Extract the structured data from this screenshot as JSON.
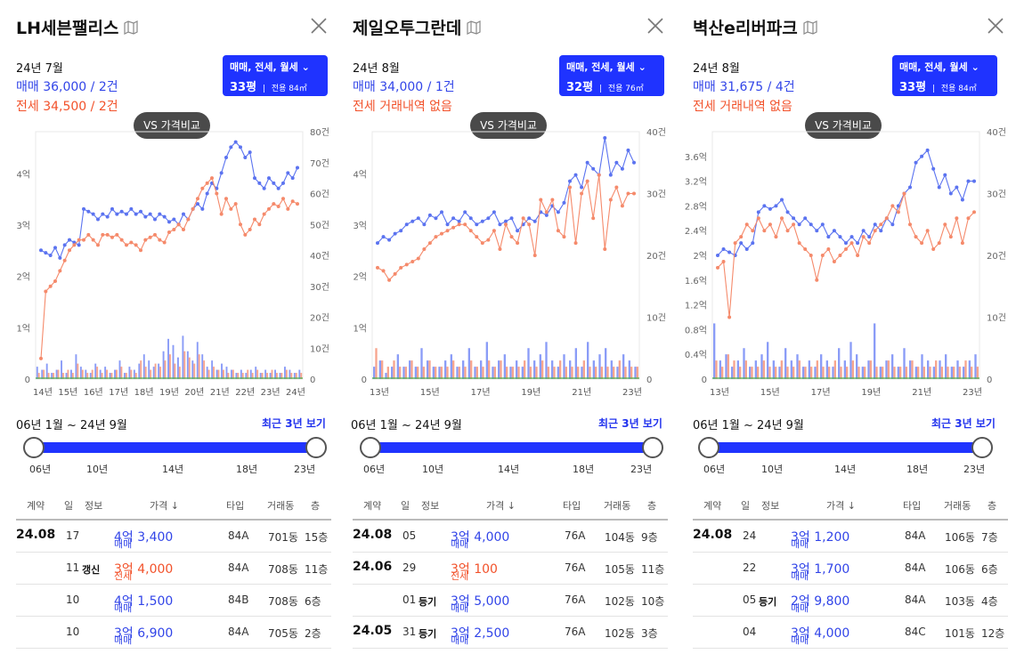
{
  "panels": [
    {
      "title": "LH세븐팰리스",
      "period": "24년 7월",
      "sale_summary": "매매 36,000 / 2건",
      "jeonse_summary": "전세 34,500 / 2건",
      "trade_select": "매매, 전세, 월세",
      "size_main": "33평",
      "size_sub": "전용 84㎡",
      "vs_label": "VS 가격비교",
      "range_label": "06년 1월 ~ 24년 9월",
      "recent_link": "최근 3년 보기",
      "slider_ticks": [
        "06년",
        "10년",
        "14년",
        "18년",
        "23년"
      ],
      "headers": [
        "계약",
        "일",
        "정보",
        "가격 ↓",
        "타입",
        "거래동",
        "층"
      ],
      "rows": [
        {
          "month": "24.08",
          "day": "17",
          "info": "",
          "kind": "매매",
          "price": "4억 3,400",
          "color": "blue",
          "type": "84A",
          "dong": "701동",
          "floor": "15층"
        },
        {
          "month": "",
          "day": "11",
          "info": "갱신",
          "kind": "전세",
          "price": "3억 4,000",
          "color": "red",
          "type": "84A",
          "dong": "708동",
          "floor": "11층"
        },
        {
          "month": "",
          "day": "10",
          "info": "",
          "kind": "매매",
          "price": "4억 1,500",
          "color": "blue",
          "type": "84B",
          "dong": "708동",
          "floor": "6층"
        },
        {
          "month": "",
          "day": "10",
          "info": "",
          "kind": "매매",
          "price": "3억 6,900",
          "color": "blue",
          "type": "84A",
          "dong": "705동",
          "floor": "2층"
        }
      ],
      "chart_data": {
        "type": "line",
        "x_ticks": [
          "14년",
          "15년",
          "16년",
          "17년",
          "18년",
          "19년",
          "20년",
          "21년",
          "22년",
          "23년",
          "24년"
        ],
        "y_left_ticks": [
          "0",
          "1억",
          "2억",
          "3억",
          "4억"
        ],
        "y_right_ticks": [
          "0",
          "10건",
          "20건",
          "30건",
          "40건",
          "50건",
          "60건",
          "70건",
          "80건"
        ],
        "ylim": [
          0,
          4.8
        ],
        "series": [
          {
            "name": "매매",
            "color": "#5b73f0",
            "values": [
              2.5,
              2.45,
              2.4,
              2.55,
              2.35,
              2.6,
              2.7,
              2.65,
              2.6,
              3.3,
              3.25,
              3.2,
              3.1,
              3.2,
              3.15,
              3.3,
              3.2,
              3.25,
              3.2,
              3.3,
              3.2,
              3.25,
              3.15,
              3.2,
              3.1,
              3.2,
              3.15,
              3.05,
              3.1,
              3.0,
              3.2,
              3.1,
              3.3,
              3.4,
              3.3,
              3.6,
              3.8,
              3.7,
              4.0,
              4.3,
              4.5,
              4.6,
              4.5,
              4.3,
              4.4,
              3.9,
              3.8,
              3.7,
              3.9,
              3.8,
              3.7,
              3.8,
              4.0,
              3.9,
              4.1
            ]
          },
          {
            "name": "전세",
            "color": "#f58a6b",
            "values": [
              0.4,
              1.7,
              1.8,
              1.9,
              2.1,
              2.3,
              2.5,
              2.6,
              2.7,
              2.7,
              2.8,
              2.7,
              2.6,
              2.8,
              2.8,
              2.75,
              2.8,
              2.7,
              2.6,
              2.65,
              2.6,
              2.5,
              2.7,
              2.75,
              2.8,
              2.7,
              2.65,
              2.85,
              2.9,
              3.0,
              2.9,
              3.1,
              3.3,
              3.5,
              3.7,
              3.8,
              3.9,
              3.6,
              3.2,
              3.5,
              3.3,
              3.4,
              3.0,
              2.8,
              2.9,
              3.1,
              3.0,
              3.2,
              3.3,
              3.4,
              3.35,
              3.5,
              3.3,
              3.45,
              3.4
            ]
          }
        ],
        "volume": {
          "name": "거래량",
          "max": 80,
          "blue": [
            4,
            3,
            5,
            2,
            3,
            6,
            2,
            3,
            8,
            4,
            3,
            2,
            5,
            3,
            4,
            2,
            3,
            6,
            2,
            4,
            3,
            5,
            8,
            6,
            4,
            5,
            9,
            13,
            11,
            7,
            14,
            9,
            6,
            12,
            8,
            4,
            6,
            3,
            5,
            4,
            3,
            2,
            3,
            2,
            3,
            4,
            2,
            3,
            2,
            3,
            2,
            4,
            3,
            2,
            3
          ],
          "red": [
            2,
            3,
            2,
            2,
            3,
            2,
            3,
            2,
            5,
            3,
            2,
            3,
            4,
            2,
            3,
            2,
            3,
            4,
            2,
            3,
            2,
            6,
            4,
            3,
            5,
            4,
            6,
            8,
            5,
            4,
            9,
            7,
            5,
            8,
            6,
            3,
            4,
            3,
            3,
            2,
            3,
            2,
            2,
            3,
            2,
            3,
            2,
            2,
            3,
            2,
            2,
            3,
            2,
            2,
            2
          ]
        }
      }
    },
    {
      "title": "제일오투그란데",
      "period": "24년 8월",
      "sale_summary": "매매 34,000 / 1건",
      "jeonse_summary": "전세 거래내역 없음",
      "trade_select": "매매, 전세, 월세",
      "size_main": "32평",
      "size_sub": "전용 76㎡",
      "vs_label": "VS 가격비교",
      "range_label": "06년 1월 ~ 24년 9월",
      "recent_link": "최근 3년 보기",
      "slider_ticks": [
        "06년",
        "10년",
        "14년",
        "18년",
        "23년"
      ],
      "headers": [
        "계약",
        "일",
        "정보",
        "가격 ↓",
        "타입",
        "거래동",
        "층"
      ],
      "rows": [
        {
          "month": "24.08",
          "day": "05",
          "info": "",
          "kind": "매매",
          "price": "3억 4,000",
          "color": "blue",
          "type": "76A",
          "dong": "104동",
          "floor": "9층"
        },
        {
          "month": "24.06",
          "day": "29",
          "info": "",
          "kind": "전세",
          "price": "3억 100",
          "color": "red",
          "type": "76A",
          "dong": "105동",
          "floor": "11층"
        },
        {
          "month": "",
          "day": "01",
          "info": "등기",
          "kind": "매매",
          "price": "3억 5,000",
          "color": "blue",
          "type": "76A",
          "dong": "102동",
          "floor": "10층"
        },
        {
          "month": "24.05",
          "day": "31",
          "info": "등기",
          "kind": "매매",
          "price": "3억 2,500",
          "color": "blue",
          "type": "76A",
          "dong": "102동",
          "floor": "3층"
        }
      ],
      "chart_data": {
        "type": "line",
        "x_ticks": [
          "13년",
          "15년",
          "17년",
          "19년",
          "21년",
          "23년"
        ],
        "y_left_ticks": [
          "0",
          "1억",
          "2억",
          "3억",
          "4억"
        ],
        "y_right_ticks": [
          "0",
          "10건",
          "20건",
          "30건",
          "40건"
        ],
        "ylim": [
          0,
          4.0
        ],
        "series": [
          {
            "name": "매매",
            "color": "#5b73f0",
            "values": [
              2.2,
              2.3,
              2.25,
              2.35,
              2.4,
              2.5,
              2.55,
              2.6,
              2.5,
              2.65,
              2.6,
              2.7,
              2.5,
              2.6,
              2.55,
              2.7,
              2.6,
              2.5,
              2.55,
              2.6,
              2.7,
              2.5,
              2.55,
              2.6,
              2.4,
              2.5,
              2.6,
              2.55,
              2.7,
              2.65,
              2.8,
              2.7,
              2.85,
              3.2,
              3.3,
              3.1,
              3.5,
              3.4,
              3.3,
              3.9,
              3.3,
              3.5,
              3.4,
              3.7,
              3.5
            ]
          },
          {
            "name": "전세",
            "color": "#f58a6b",
            "values": [
              1.8,
              1.75,
              1.6,
              1.7,
              1.8,
              1.85,
              1.9,
              1.95,
              2.1,
              2.2,
              2.3,
              2.35,
              2.4,
              2.45,
              2.5,
              2.5,
              2.4,
              2.3,
              2.2,
              2.25,
              2.4,
              2.1,
              2.5,
              2.3,
              2.2,
              2.6,
              2.5,
              2.0,
              2.9,
              2.7,
              2.9,
              2.4,
              2.3,
              3.1,
              2.2,
              3.0,
              3.2,
              2.6,
              3.3,
              2.1,
              2.9,
              3.1,
              2.8,
              3.0,
              3.0
            ]
          }
        ],
        "volume": {
          "name": "거래량",
          "max": 40,
          "blue": [
            2,
            3,
            1,
            2,
            4,
            2,
            3,
            2,
            5,
            3,
            2,
            2,
            3,
            4,
            2,
            3,
            5,
            2,
            3,
            6,
            2,
            3,
            4,
            2,
            3,
            2,
            5,
            3,
            4,
            6,
            3,
            2,
            4,
            3,
            5,
            2,
            6,
            3,
            4,
            5,
            3,
            2,
            4,
            3,
            2
          ],
          "red": [
            5,
            3,
            2,
            3,
            2,
            2,
            3,
            2,
            2,
            3,
            2,
            2,
            2,
            3,
            2,
            2,
            3,
            2,
            2,
            3,
            2,
            3,
            2,
            2,
            2,
            3,
            2,
            2,
            3,
            2,
            2,
            3,
            2,
            2,
            2,
            3,
            2,
            2,
            2,
            2,
            2,
            3,
            2,
            2,
            2
          ]
        }
      }
    },
    {
      "title": "벽산e리버파크",
      "period": "24년 8월",
      "sale_summary": "매매 31,675 / 4건",
      "jeonse_summary": "전세 거래내역 없음",
      "trade_select": "매매, 전세, 월세",
      "size_main": "33평",
      "size_sub": "전용 84㎡",
      "vs_label": "VS 가격비교",
      "range_label": "06년 1월 ~ 24년 9월",
      "recent_link": "최근 3년 보기",
      "slider_ticks": [
        "06년",
        "10년",
        "14년",
        "18년",
        "23년"
      ],
      "headers": [
        "계약",
        "일",
        "정보",
        "가격 ↓",
        "타입",
        "거래동",
        "층"
      ],
      "rows": [
        {
          "month": "24.08",
          "day": "24",
          "info": "",
          "kind": "매매",
          "price": "3억 1,200",
          "color": "blue",
          "type": "84A",
          "dong": "106동",
          "floor": "7층"
        },
        {
          "month": "",
          "day": "22",
          "info": "",
          "kind": "매매",
          "price": "3억 1,700",
          "color": "blue",
          "type": "84A",
          "dong": "106동",
          "floor": "6층"
        },
        {
          "month": "",
          "day": "05",
          "info": "등기",
          "kind": "매매",
          "price": "2억 9,800",
          "color": "blue",
          "type": "84A",
          "dong": "103동",
          "floor": "4층"
        },
        {
          "month": "",
          "day": "04",
          "info": "",
          "kind": "매매",
          "price": "3억 4,000",
          "color": "blue",
          "type": "84C",
          "dong": "101동",
          "floor": "12층"
        }
      ],
      "chart_data": {
        "type": "line",
        "x_ticks": [
          "13년",
          "15년",
          "17년",
          "19년",
          "21년",
          "23년"
        ],
        "y_left_ticks": [
          "0",
          "0.4억",
          "0.8억",
          "1.2억",
          "1.6억",
          "2억",
          "2.4억",
          "2.8억",
          "3.2억",
          "3.6억"
        ],
        "y_left_tick_text": [
          "0",
          "0.4억",
          "0.8억",
          "1.2억",
          "1.6억",
          "2억",
          "2.4억",
          "2.8억",
          "3.2억",
          "3.6억"
        ],
        "y_right_ticks": [
          "0",
          "10건",
          "20건",
          "30건",
          "40건"
        ],
        "ylim": [
          0,
          4.0
        ],
        "series": [
          {
            "name": "매매",
            "color": "#5b73f0",
            "values": [
              2.0,
              2.1,
              2.05,
              2.0,
              2.2,
              2.1,
              2.2,
              2.7,
              2.8,
              2.75,
              2.8,
              2.9,
              2.7,
              2.6,
              2.5,
              2.6,
              2.5,
              2.4,
              2.5,
              2.3,
              2.4,
              2.3,
              2.2,
              2.3,
              2.2,
              2.4,
              2.3,
              2.5,
              2.4,
              2.6,
              2.5,
              2.8,
              3.0,
              3.1,
              3.5,
              3.6,
              3.7,
              3.4,
              3.1,
              3.3,
              3.0,
              3.1,
              2.9,
              3.2,
              3.2
            ]
          },
          {
            "name": "전세",
            "color": "#f58a6b",
            "values": [
              1.8,
              1.9,
              1.0,
              2.2,
              2.3,
              2.5,
              2.4,
              2.6,
              2.4,
              2.5,
              2.3,
              2.6,
              2.4,
              2.5,
              2.2,
              2.1,
              2.0,
              1.6,
              2.0,
              2.1,
              1.9,
              2.0,
              2.1,
              2.2,
              2.0,
              2.3,
              2.2,
              2.4,
              2.5,
              2.6,
              2.8,
              2.7,
              3.0,
              2.5,
              2.3,
              2.2,
              2.4,
              2.1,
              2.2,
              2.5,
              2.3,
              2.6,
              2.2,
              2.6,
              2.7
            ]
          }
        ],
        "volume": {
          "name": "거래량",
          "max": 40,
          "blue": [
            9,
            3,
            4,
            2,
            3,
            5,
            2,
            3,
            4,
            6,
            3,
            2,
            5,
            3,
            4,
            2,
            3,
            2,
            4,
            3,
            2,
            5,
            3,
            6,
            4,
            2,
            3,
            9,
            2,
            3,
            4,
            2,
            5,
            3,
            2,
            4,
            3,
            2,
            3,
            4,
            2,
            3,
            2,
            3,
            4
          ],
          "red": [
            3,
            2,
            4,
            3,
            2,
            3,
            2,
            2,
            3,
            2,
            2,
            3,
            2,
            2,
            3,
            2,
            2,
            3,
            2,
            2,
            3,
            2,
            2,
            3,
            2,
            2,
            3,
            2,
            2,
            3,
            2,
            2,
            2,
            3,
            2,
            2,
            2,
            3,
            2,
            2,
            2,
            2,
            3,
            2,
            2
          ]
        }
      }
    }
  ]
}
